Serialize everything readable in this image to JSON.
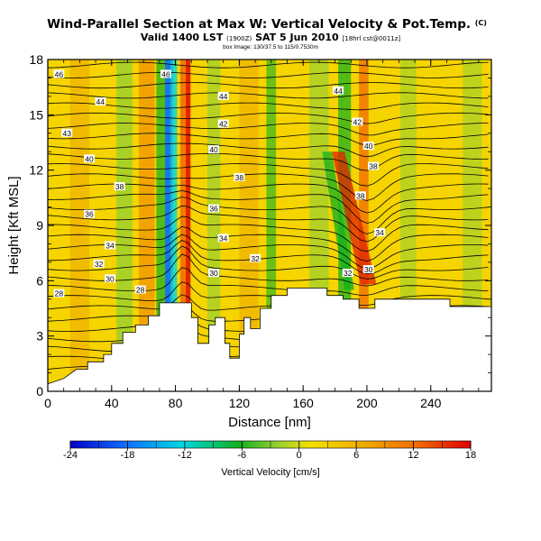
{
  "chart_data": {
    "type": "heatmap",
    "title": "Wind-Parallel Section at Max W: Vertical Velocity & Pot.Temp.",
    "title_mark": "(C)",
    "subtitle_main": "Valid 1400 LST",
    "subtitle_small1": "(1900Z)",
    "subtitle_date": "SAT 5 Jun 2010",
    "subtitle_small2": "[18hrl cst@0011z]",
    "subtitle_line3": "box Image: 130/37.5 to 115/0.7530m",
    "xlabel": "Distance [nm]",
    "ylabel": "Height [Kft MSL]",
    "xlim": [
      0,
      278
    ],
    "ylim": [
      0,
      18
    ],
    "xticks": [
      "0",
      "40",
      "80",
      "120",
      "160",
      "200",
      "240"
    ],
    "yticks": [
      "0",
      "3",
      "6",
      "9",
      "12",
      "15",
      "18"
    ],
    "colorbar": {
      "label": "Vertical Velocity [cm/s]",
      "range": [
        -24,
        18
      ],
      "ticks": [
        "-24",
        "-18",
        "-12",
        "-6",
        "0",
        "6",
        "12",
        "18"
      ]
    },
    "contour_labels": [
      {
        "text": "46",
        "x": 7,
        "y": 17.2
      },
      {
        "text": "46",
        "x": 74,
        "y": 17.2
      },
      {
        "text": "44",
        "x": 33,
        "y": 15.7
      },
      {
        "text": "44",
        "x": 110,
        "y": 16.0
      },
      {
        "text": "44",
        "x": 182,
        "y": 16.3
      },
      {
        "text": "43",
        "x": 12,
        "y": 14.0
      },
      {
        "text": "42",
        "x": 110,
        "y": 14.5
      },
      {
        "text": "42",
        "x": 194,
        "y": 14.6
      },
      {
        "text": "40",
        "x": 26,
        "y": 12.6
      },
      {
        "text": "40",
        "x": 104,
        "y": 13.1
      },
      {
        "text": "40",
        "x": 201,
        "y": 13.3
      },
      {
        "text": "38",
        "x": 45,
        "y": 11.1
      },
      {
        "text": "38",
        "x": 120,
        "y": 11.6
      },
      {
        "text": "38",
        "x": 204,
        "y": 12.2
      },
      {
        "text": "38",
        "x": 196,
        "y": 10.6
      },
      {
        "text": "36",
        "x": 26,
        "y": 9.6
      },
      {
        "text": "36",
        "x": 104,
        "y": 9.9
      },
      {
        "text": "34",
        "x": 39,
        "y": 7.9
      },
      {
        "text": "34",
        "x": 110,
        "y": 8.3
      },
      {
        "text": "34",
        "x": 208,
        "y": 8.6
      },
      {
        "text": "32",
        "x": 32,
        "y": 6.9
      },
      {
        "text": "32",
        "x": 130,
        "y": 7.2
      },
      {
        "text": "32",
        "x": 188,
        "y": 6.4
      },
      {
        "text": "30",
        "x": 39,
        "y": 6.1
      },
      {
        "text": "30",
        "x": 104,
        "y": 6.4
      },
      {
        "text": "30",
        "x": 201,
        "y": 6.6
      },
      {
        "text": "28",
        "x": 7,
        "y": 5.3
      },
      {
        "text": "28",
        "x": 58,
        "y": 5.5
      }
    ],
    "terrain": [
      [
        0,
        0.4
      ],
      [
        10,
        0.7
      ],
      [
        18,
        1.2
      ],
      [
        25,
        1.2
      ],
      [
        25,
        1.6
      ],
      [
        35,
        1.6
      ],
      [
        35,
        2.0
      ],
      [
        40,
        2.0
      ],
      [
        40,
        2.6
      ],
      [
        47,
        2.6
      ],
      [
        47,
        3.2
      ],
      [
        55,
        3.2
      ],
      [
        55,
        3.6
      ],
      [
        63,
        3.6
      ],
      [
        63,
        4.1
      ],
      [
        70,
        4.1
      ],
      [
        70,
        4.8
      ],
      [
        90,
        4.8
      ],
      [
        90,
        4.0
      ],
      [
        94,
        4.0
      ],
      [
        94,
        2.6
      ],
      [
        101,
        2.6
      ],
      [
        101,
        3.6
      ],
      [
        105,
        3.6
      ],
      [
        105,
        4.0
      ],
      [
        111,
        4.0
      ],
      [
        111,
        2.6
      ],
      [
        114,
        2.6
      ],
      [
        114,
        1.8
      ],
      [
        120,
        1.8
      ],
      [
        120,
        3.1
      ],
      [
        123,
        3.1
      ],
      [
        123,
        4.0
      ],
      [
        127,
        4.0
      ],
      [
        127,
        3.4
      ],
      [
        133,
        3.4
      ],
      [
        133,
        4.5
      ],
      [
        140,
        4.5
      ],
      [
        140,
        5.2
      ],
      [
        150,
        5.2
      ],
      [
        150,
        5.6
      ],
      [
        175,
        5.6
      ],
      [
        175,
        5.2
      ],
      [
        185,
        5.2
      ],
      [
        185,
        5.0
      ],
      [
        195,
        5.0
      ],
      [
        195,
        4.5
      ],
      [
        205,
        4.5
      ],
      [
        205,
        5.0
      ],
      [
        252,
        5.0
      ],
      [
        252,
        4.6
      ],
      [
        265,
        4.6
      ],
      [
        265,
        4.6
      ],
      [
        278,
        4.6
      ]
    ]
  }
}
